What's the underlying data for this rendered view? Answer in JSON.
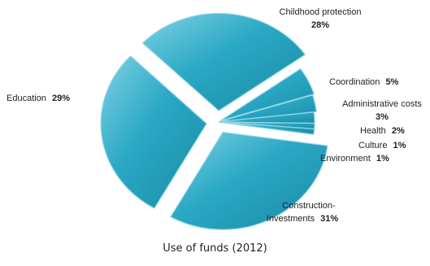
{
  "caption": "Use of funds (2012)",
  "chart_data": {
    "type": "pie",
    "title": "Use of funds (2012)",
    "slices": [
      {
        "label": "Construction- Investments",
        "value": 31,
        "percent_label": "31%"
      },
      {
        "label": "Education",
        "value": 29,
        "percent_label": "29%"
      },
      {
        "label": "Childhood protection",
        "value": 28,
        "percent_label": "28%"
      },
      {
        "label": "Coordination",
        "value": 5,
        "percent_label": "5%"
      },
      {
        "label": "Administrative costs",
        "value": 3,
        "percent_label": "3%"
      },
      {
        "label": "Health",
        "value": 2,
        "percent_label": "2%"
      },
      {
        "label": "Culture",
        "value": 1,
        "percent_label": "1%"
      },
      {
        "label": "Environment",
        "value": 1,
        "percent_label": "1%"
      }
    ],
    "colors": {
      "slice_fill": "#2aa8c4",
      "slice_edge": "#8fd6e6"
    }
  }
}
